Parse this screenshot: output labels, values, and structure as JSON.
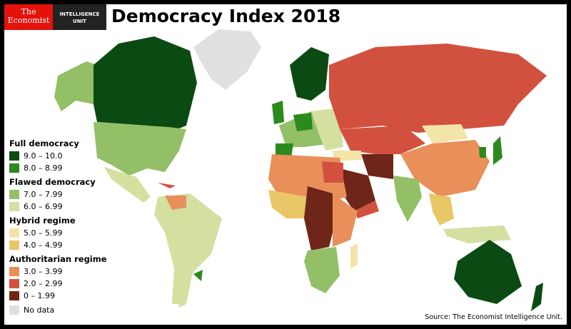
{
  "header": {
    "logo_line1": "The",
    "logo_line2": "Economist",
    "unit_line1": "INTELLIGENCE",
    "unit_line2": "UNIT",
    "title": "Democracy Index 2018"
  },
  "legend": {
    "groups": [
      {
        "label": "Full democracy",
        "items": [
          {
            "range": "9.0 – 10.0",
            "color": "#0b4a12"
          },
          {
            "range": "8.0 – 8.99",
            "color": "#2a8a1c"
          }
        ]
      },
      {
        "label": "Flawed democracy",
        "items": [
          {
            "range": "7.0 – 7.99",
            "color": "#93bf66"
          },
          {
            "range": "6.0 – 6.99",
            "color": "#d3e0a0"
          }
        ]
      },
      {
        "label": "Hybrid regime",
        "items": [
          {
            "range": "5.0 – 5.99",
            "color": "#f3e4a8"
          },
          {
            "range": "4.0 – 4.99",
            "color": "#e9c766"
          }
        ]
      },
      {
        "label": "Authoritarian regime",
        "items": [
          {
            "range": "3.0 – 3.99",
            "color": "#e98f5a"
          },
          {
            "range": "2.0 – 2.99",
            "color": "#d2513e"
          },
          {
            "range": "0 – 1.99",
            "color": "#6f2518"
          }
        ]
      }
    ],
    "no_data": {
      "label": "No data",
      "color": "#e0e0e0"
    }
  },
  "source": "Source: The Economist Intelligence Unit."
}
